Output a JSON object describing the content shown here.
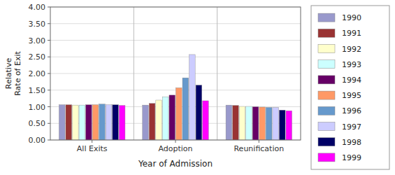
{
  "chart_data": {
    "type": "bar",
    "categories": [
      "All Exits",
      "Adoption",
      "Reunification"
    ],
    "series": [
      {
        "name": "1990",
        "color": "#9999CC",
        "values": [
          1.06,
          1.05,
          1.05
        ]
      },
      {
        "name": "1991",
        "color": "#993333",
        "values": [
          1.06,
          1.1,
          1.04
        ]
      },
      {
        "name": "1992",
        "color": "#FFFFCC",
        "values": [
          1.05,
          1.2,
          1.01
        ]
      },
      {
        "name": "1993",
        "color": "#CCFFFF",
        "values": [
          1.05,
          1.3,
          1.01
        ]
      },
      {
        "name": "1994",
        "color": "#660066",
        "values": [
          1.06,
          1.35,
          1.0
        ]
      },
      {
        "name": "1995",
        "color": "#FF9966",
        "values": [
          1.06,
          1.57,
          0.99
        ]
      },
      {
        "name": "1996",
        "color": "#6699CC",
        "values": [
          1.08,
          1.87,
          0.98
        ]
      },
      {
        "name": "1997",
        "color": "#CCCCFF",
        "values": [
          1.06,
          2.57,
          0.98
        ]
      },
      {
        "name": "1998",
        "color": "#000066",
        "values": [
          1.06,
          1.65,
          0.9
        ]
      },
      {
        "name": "1999",
        "color": "#FF00FF",
        "values": [
          1.04,
          1.18,
          0.88
        ]
      }
    ],
    "xlabel": "Year of Admission",
    "ylabel": "Relative\nRate of Exit",
    "ylim": [
      0.0,
      4.0
    ],
    "yticks": [
      {
        "value": 0.0,
        "label": "0.00"
      },
      {
        "value": 0.5,
        "label": "0.50"
      },
      {
        "value": 1.0,
        "label": "1.00"
      },
      {
        "value": 1.5,
        "label": "1.50"
      },
      {
        "value": 2.0,
        "label": "2.00"
      },
      {
        "value": 2.5,
        "label": "2.50"
      },
      {
        "value": 3.0,
        "label": "3.00"
      },
      {
        "value": 3.5,
        "label": "3.50"
      },
      {
        "value": 4.0,
        "label": "4.00"
      }
    ],
    "grid": true,
    "legend": "right"
  }
}
